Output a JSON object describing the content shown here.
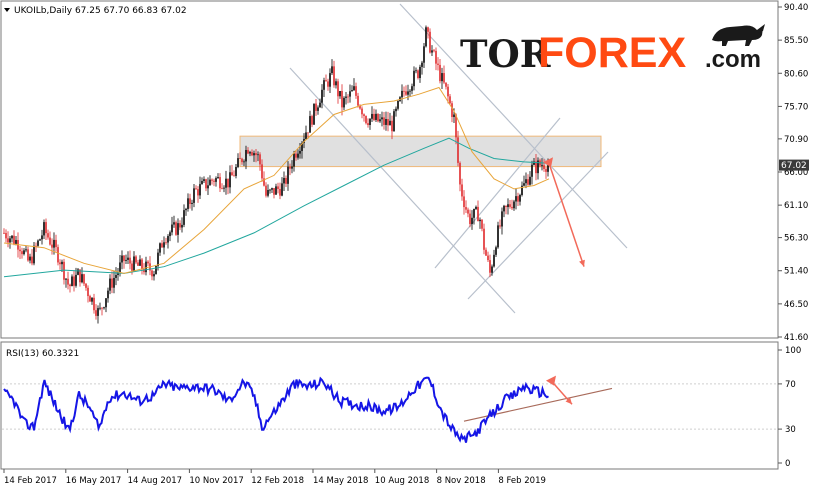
{
  "header": {
    "symbol_line": "UKOILb,Daily  67.25 67.70 66.83 67.02"
  },
  "logo": {
    "tor": "TOR",
    "forex": "FOREX",
    "com": ".com",
    "accent": "#ff4a12"
  },
  "colors": {
    "candle_bull": "#000000",
    "candle_bear": "#e0282a",
    "ma_fast": "#e8a53a",
    "ma_slow": "#22a79e",
    "rsi_line": "#1515e6",
    "channel": "#b8c0cc",
    "zone_fill": "#d6d6d6",
    "zone_border": "#f0b878",
    "forecast_arrow": "#f26a5a",
    "rsi_trend": "#a86a5a",
    "price_tag_bg": "#3a3a3a"
  },
  "chart_data": {
    "type": "candlestick",
    "price_axis": {
      "ylim": [
        41.6,
        90.4
      ],
      "ticks": [
        "90.40",
        "85.50",
        "80.60",
        "75.70",
        "70.90",
        "66.00",
        "61.10",
        "56.30",
        "51.40",
        "46.50",
        "41.60"
      ],
      "current": "67.02"
    },
    "rsi": {
      "label": "RSI(13) 60.3321",
      "ylim": [
        0,
        100
      ],
      "ticks": [
        "100",
        "70",
        "30",
        "0"
      ]
    },
    "x_ticks": [
      "14 Feb 2017",
      "16 May 2017",
      "14 Aug 2017",
      "10 Nov 2017",
      "12 Feb 2018",
      "14 May 2018",
      "10 Aug 2018",
      "8 Nov 2018",
      "8 Feb 2019"
    ],
    "price_path": [
      [
        0,
        57.0
      ],
      [
        15,
        55.5
      ],
      [
        25,
        52.5
      ],
      [
        40,
        57.5
      ],
      [
        55,
        53.5
      ],
      [
        65,
        49.0
      ],
      [
        75,
        51.0
      ],
      [
        85,
        48.0
      ],
      [
        95,
        45.0
      ],
      [
        105,
        49.0
      ],
      [
        120,
        53.0
      ],
      [
        135,
        52.0
      ],
      [
        150,
        51.5
      ],
      [
        160,
        56.5
      ],
      [
        175,
        58.0
      ],
      [
        190,
        63.0
      ],
      [
        210,
        65.0
      ],
      [
        225,
        64.5
      ],
      [
        245,
        70.0
      ],
      [
        255,
        68.0
      ],
      [
        262,
        62.5
      ],
      [
        280,
        64.0
      ],
      [
        290,
        68.5
      ],
      [
        305,
        73.0
      ],
      [
        318,
        78.0
      ],
      [
        328,
        80.5
      ],
      [
        338,
        76.0
      ],
      [
        350,
        78.0
      ],
      [
        362,
        74.0
      ],
      [
        375,
        73.5
      ],
      [
        388,
        73.0
      ],
      [
        400,
        78.0
      ],
      [
        415,
        81.0
      ],
      [
        422,
        86.5
      ],
      [
        432,
        82.0
      ],
      [
        442,
        78.0
      ],
      [
        450,
        74.0
      ],
      [
        456,
        64.0
      ],
      [
        465,
        59.0
      ],
      [
        475,
        60.0
      ],
      [
        480,
        55.0
      ],
      [
        486,
        51.0
      ],
      [
        492,
        56.0
      ],
      [
        500,
        60.0
      ],
      [
        510,
        62.0
      ],
      [
        520,
        64.0
      ],
      [
        528,
        66.5
      ],
      [
        535,
        67.0
      ],
      [
        540,
        67.3
      ],
      [
        545,
        67.0
      ]
    ],
    "ma_fast_path": [
      [
        0,
        55.5
      ],
      [
        40,
        54.8
      ],
      [
        80,
        52.5
      ],
      [
        120,
        51.0
      ],
      [
        160,
        52.5
      ],
      [
        200,
        57.5
      ],
      [
        240,
        63.5
      ],
      [
        270,
        65.5
      ],
      [
        300,
        70.5
      ],
      [
        330,
        74.5
      ],
      [
        360,
        76.0
      ],
      [
        390,
        76.5
      ],
      [
        415,
        77.5
      ],
      [
        435,
        78.5
      ],
      [
        450,
        75.0
      ],
      [
        468,
        69.0
      ],
      [
        490,
        65.0
      ],
      [
        510,
        63.5
      ],
      [
        530,
        64.0
      ],
      [
        545,
        65.0
      ]
    ],
    "ma_slow_path": [
      [
        0,
        50.5
      ],
      [
        60,
        51.5
      ],
      [
        120,
        51.0
      ],
      [
        160,
        52.0
      ],
      [
        200,
        54.0
      ],
      [
        250,
        57.0
      ],
      [
        300,
        61.0
      ],
      [
        340,
        64.0
      ],
      [
        380,
        67.0
      ],
      [
        420,
        69.5
      ],
      [
        445,
        71.0
      ],
      [
        465,
        69.5
      ],
      [
        490,
        68.0
      ],
      [
        520,
        67.5
      ],
      [
        545,
        67.3
      ]
    ],
    "rsi_path": [
      [
        0,
        62
      ],
      [
        10,
        55
      ],
      [
        20,
        35
      ],
      [
        30,
        32
      ],
      [
        40,
        72
      ],
      [
        55,
        45
      ],
      [
        65,
        28
      ],
      [
        75,
        60
      ],
      [
        85,
        50
      ],
      [
        95,
        30
      ],
      [
        105,
        58
      ],
      [
        120,
        62
      ],
      [
        135,
        55
      ],
      [
        150,
        60
      ],
      [
        160,
        70
      ],
      [
        175,
        66
      ],
      [
        190,
        68
      ],
      [
        210,
        65
      ],
      [
        225,
        55
      ],
      [
        240,
        72
      ],
      [
        250,
        60
      ],
      [
        258,
        32
      ],
      [
        270,
        45
      ],
      [
        290,
        70
      ],
      [
        305,
        68
      ],
      [
        320,
        72
      ],
      [
        335,
        55
      ],
      [
        350,
        52
      ],
      [
        365,
        50
      ],
      [
        380,
        46
      ],
      [
        395,
        50
      ],
      [
        410,
        66
      ],
      [
        425,
        75
      ],
      [
        438,
        45
      ],
      [
        448,
        30
      ],
      [
        458,
        20
      ],
      [
        470,
        25
      ],
      [
        480,
        35
      ],
      [
        490,
        45
      ],
      [
        500,
        55
      ],
      [
        510,
        60
      ],
      [
        520,
        68
      ],
      [
        530,
        64
      ],
      [
        540,
        62
      ],
      [
        545,
        60
      ]
    ],
    "resistance_zone": [
      66.8,
      71.3
    ],
    "forecast": {
      "from": [
        545,
        67.3
      ],
      "to": [
        580,
        52.0
      ]
    },
    "rsi_forecast": {
      "from": [
        548,
        72
      ],
      "to": [
        568,
        52
      ]
    },
    "rsi_trendline": {
      "from": [
        460,
        37
      ],
      "to": [
        608,
        66
      ]
    }
  }
}
